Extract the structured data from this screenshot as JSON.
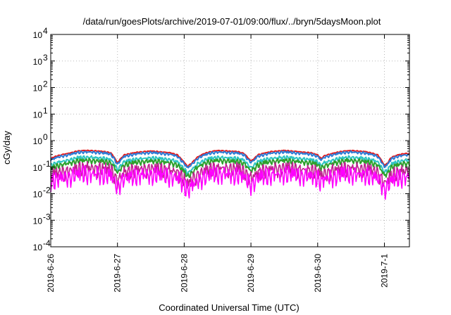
{
  "chart_data": {
    "type": "line",
    "title": "/data/run/goesPlots/archive/2019-07-01/09:00/flux/../bryn/5daysMoon.plot",
    "xlabel": "Coordinated Universal Time (UTC)",
    "ylabel": "cGy/day",
    "y_scale": "log",
    "ylim": [
      0.0001,
      10000
    ],
    "y_ticks": [
      {
        "mant": "10",
        "exp": "-4"
      },
      {
        "mant": "10",
        "exp": "-3"
      },
      {
        "mant": "10",
        "exp": "-2"
      },
      {
        "mant": "10",
        "exp": "-1"
      },
      {
        "mant": "10",
        "exp": "0"
      },
      {
        "mant": "10",
        "exp": "1"
      },
      {
        "mant": "10",
        "exp": "2"
      },
      {
        "mant": "10",
        "exp": "3"
      },
      {
        "mant": "10",
        "exp": "4"
      }
    ],
    "x_range": [
      "2019-06-26",
      "2019-07-01 09:00"
    ],
    "x_ticks": [
      "2019-6-26",
      "2019-6-27",
      "2019-6-28",
      "2019-6-29",
      "2019-6-30",
      "2019-7-1"
    ],
    "grid": true,
    "legend": "none",
    "series": [
      {
        "color": "#e41a1c",
        "scale": 1.0
      },
      {
        "color": "#2c7bd6",
        "scale": 0.93
      },
      {
        "color": "#2ec4c4",
        "scale": 0.62
      },
      {
        "color": "#2ca02c",
        "scale": 0.5
      },
      {
        "color": "#c02090",
        "scale": 0.38
      },
      {
        "color": "#ff00ff",
        "scale": 0.26
      }
    ],
    "base_profile": {
      "x_days": [
        0.0,
        0.05,
        0.1,
        0.2,
        0.3,
        0.4,
        0.5,
        0.6,
        0.7,
        0.8,
        0.9,
        0.95,
        1.0,
        1.05,
        1.1,
        1.2,
        1.3,
        1.4,
        1.5,
        1.6,
        1.7,
        1.8,
        1.9,
        2.0,
        2.05,
        2.1,
        2.2,
        2.3,
        2.4,
        2.5,
        2.6,
        2.7,
        2.8,
        2.9,
        2.95,
        3.0,
        3.05,
        3.1,
        3.2,
        3.3,
        3.4,
        3.5,
        3.6,
        3.7,
        3.8,
        3.9,
        4.0,
        4.05,
        4.1,
        4.2,
        4.3,
        4.4,
        4.5,
        4.6,
        4.7,
        4.8,
        4.9,
        4.95,
        5.0,
        5.05,
        5.1,
        5.2,
        5.3,
        5.375
      ],
      "y": [
        0.22,
        0.25,
        0.28,
        0.32,
        0.36,
        0.42,
        0.44,
        0.44,
        0.42,
        0.4,
        0.36,
        0.25,
        0.15,
        0.22,
        0.3,
        0.34,
        0.38,
        0.4,
        0.42,
        0.4,
        0.38,
        0.36,
        0.3,
        0.16,
        0.11,
        0.14,
        0.25,
        0.34,
        0.4,
        0.44,
        0.43,
        0.41,
        0.4,
        0.34,
        0.24,
        0.18,
        0.22,
        0.3,
        0.35,
        0.4,
        0.42,
        0.44,
        0.42,
        0.4,
        0.38,
        0.36,
        0.3,
        0.22,
        0.28,
        0.33,
        0.38,
        0.42,
        0.44,
        0.42,
        0.4,
        0.36,
        0.3,
        0.2,
        0.12,
        0.15,
        0.24,
        0.3,
        0.34,
        0.34
      ]
    }
  }
}
